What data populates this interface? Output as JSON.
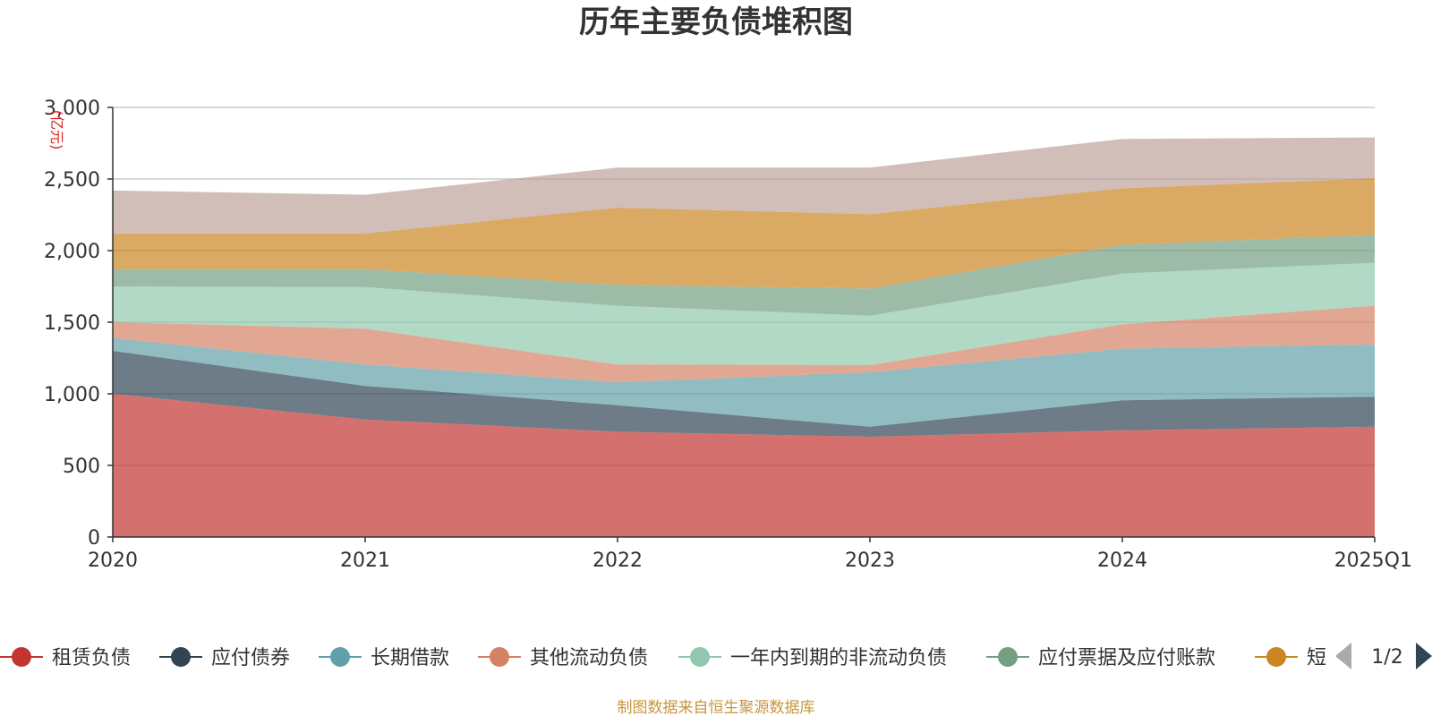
{
  "chart_data": {
    "type": "area",
    "stacked": true,
    "title": "历年主要负债堆积图",
    "ylabel": "(亿元)",
    "xlabel": "",
    "categories": [
      "2020",
      "2021",
      "2022",
      "2023",
      "2024",
      "2025Q1"
    ],
    "ylim": [
      0,
      3000
    ],
    "yticks": [
      0,
      500,
      1000,
      1500,
      2000,
      2500,
      3000
    ],
    "ytick_labels": [
      "0",
      "500",
      "1,000",
      "1,500",
      "2,000",
      "2,500",
      "3,000"
    ],
    "grid": true,
    "legend_position": "bottom",
    "series": [
      {
        "name": "租赁负债",
        "color": "#c23531",
        "values": [
          1000,
          820,
          735,
          700,
          745,
          770
        ]
      },
      {
        "name": "应付债券",
        "color": "#2f4554",
        "values": [
          300,
          235,
          185,
          70,
          210,
          210
        ]
      },
      {
        "name": "长期借款",
        "color": "#61a0a8",
        "values": [
          90,
          150,
          160,
          380,
          360,
          365
        ]
      },
      {
        "name": "其他流动负债",
        "color": "#d48265",
        "values": [
          110,
          250,
          125,
          50,
          170,
          270
        ]
      },
      {
        "name": "一年内到期的非流动负债",
        "color": "#91c7ae",
        "values": [
          250,
          290,
          410,
          345,
          355,
          300
        ]
      },
      {
        "name": "应付票据及应付账款",
        "color": "#749f83",
        "values": [
          120,
          125,
          145,
          190,
          200,
          195
        ]
      },
      {
        "name": "",
        "color": "#ca8622",
        "values": [
          250,
          250,
          540,
          520,
          395,
          395
        ]
      },
      {
        "name": "",
        "color": "#bda29a",
        "values": [
          300,
          270,
          280,
          325,
          345,
          285
        ]
      }
    ]
  },
  "legend": {
    "items": [
      {
        "label": "租赁负债",
        "color": "#c23531"
      },
      {
        "label": "应付债券",
        "color": "#2f4554"
      },
      {
        "label": "长期借款",
        "color": "#61a0a8"
      },
      {
        "label": "其他流动负债",
        "color": "#d48265"
      },
      {
        "label": "一年内到期的非流动负债",
        "color": "#91c7ae"
      },
      {
        "label": "应付票据及应付账款",
        "color": "#749f83"
      },
      {
        "label": "短",
        "color": "#ca8622"
      }
    ],
    "page_label": "1/2"
  },
  "footer": "制图数据来自恒生聚源数据库"
}
